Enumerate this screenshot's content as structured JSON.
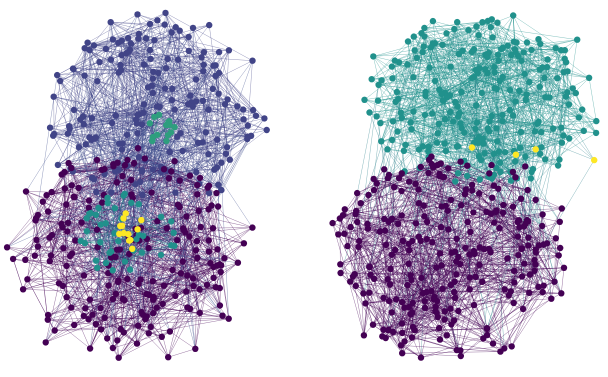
{
  "figure": {
    "panels": [
      {
        "id": "left",
        "colormap": "viridis",
        "communities": [
          {
            "name": "upper",
            "base_color": "#414487",
            "node_count": 170
          },
          {
            "name": "lower",
            "base_color": "#440154",
            "node_count": 200
          },
          {
            "name": "upper-core",
            "base_color": "#2e9e7e",
            "node_count": 14
          },
          {
            "name": "lower-core",
            "base_color": "#21908c",
            "node_count": 40
          },
          {
            "name": "hub",
            "base_color": "#fde725",
            "node_count": 12
          }
        ],
        "edge_color": "#3b4a8a"
      },
      {
        "id": "right",
        "colormap": "viridis",
        "communities": [
          {
            "name": "upper",
            "base_color": "#21918c",
            "node_count": 230
          },
          {
            "name": "lower",
            "base_color": "#440154",
            "node_count": 260
          },
          {
            "name": "highlight",
            "base_color": "#fde725",
            "node_count": 4
          }
        ],
        "edge_color": "#2a7f8a"
      }
    ]
  }
}
